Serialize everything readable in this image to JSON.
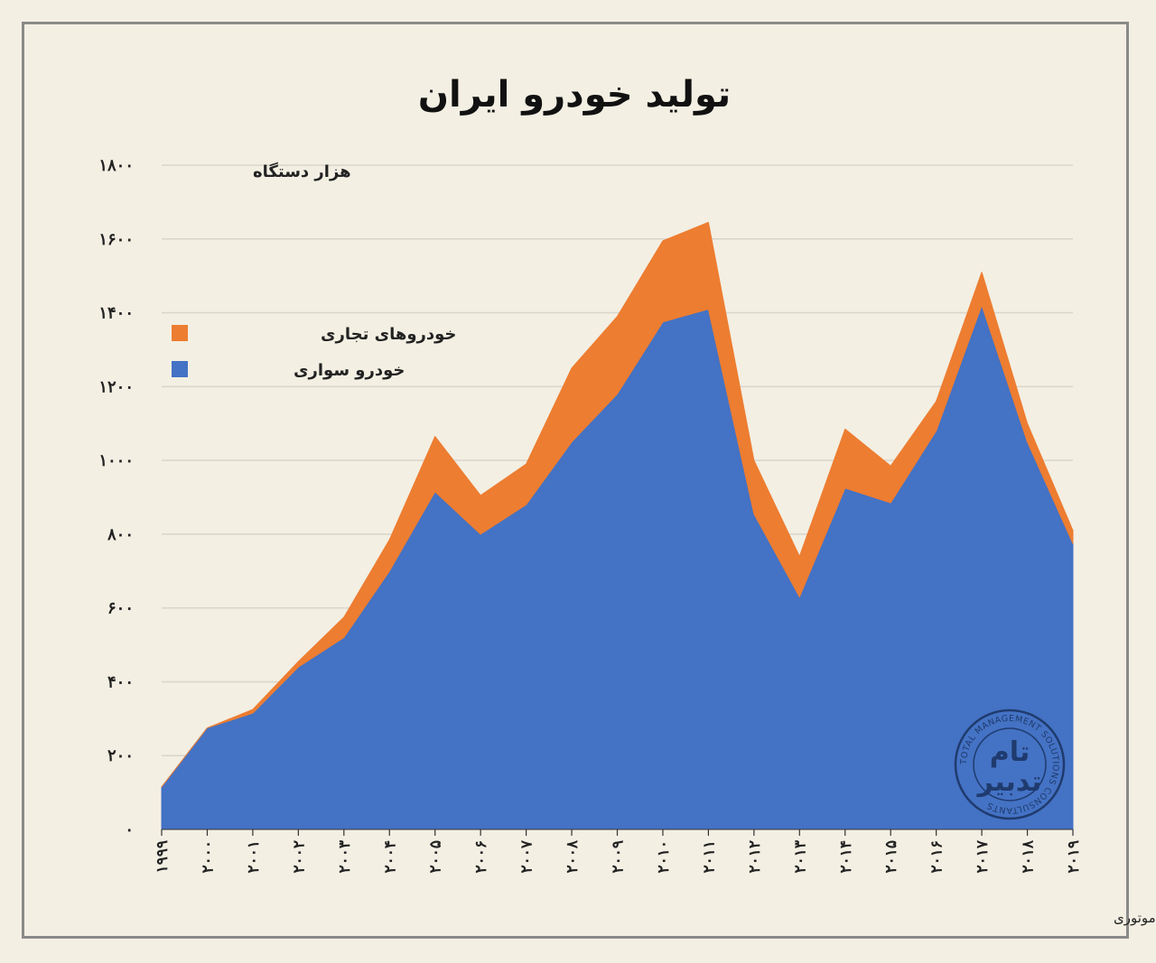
{
  "chart_data": {
    "type": "area",
    "stacked": true,
    "title": "تولید خودرو ایران",
    "ylabel": "هزار دستگاه",
    "ylim": [
      0,
      1800
    ],
    "y_ticks": [
      0,
      200,
      400,
      600,
      800,
      1000,
      1200,
      1400,
      1600,
      1800
    ],
    "y_tick_labels": [
      "۰",
      "۲۰۰",
      "۴۰۰",
      "۶۰۰",
      "۸۰۰",
      "۱۰۰۰",
      "۱۲۰۰",
      "۱۴۰۰",
      "۱۶۰۰",
      "۱۸۰۰"
    ],
    "x": [
      1999,
      2000,
      2001,
      2002,
      2003,
      2004,
      2005,
      2006,
      2007,
      2008,
      2009,
      2010,
      2011,
      2012,
      2013,
      2014,
      2015,
      2016,
      2017,
      2018,
      2019
    ],
    "x_tick_labels": [
      "۱۹۹۹",
      "۲۰۰۰",
      "۲۰۰۱",
      "۲۰۰۲",
      "۲۰۰۳",
      "۲۰۰۴",
      "۲۰۰۵",
      "۲۰۰۶",
      "۲۰۰۷",
      "۲۰۰۸",
      "۲۰۰۹",
      "۲۰۱۰",
      "۲۰۱۱",
      "۲۰۱۲",
      "۲۰۱۳",
      "۲۰۱۴",
      "۲۰۱۵",
      "۲۰۱۶",
      "۲۰۱۷",
      "۲۰۱۸",
      "۲۰۱۹"
    ],
    "series": [
      {
        "name": "خودرو سواری",
        "color": "#4472c4",
        "values": [
          115,
          275,
          315,
          440,
          520,
          700,
          915,
          800,
          880,
          1050,
          1180,
          1375,
          1410,
          855,
          630,
          925,
          885,
          1080,
          1420,
          1050,
          775
        ]
      },
      {
        "name": "خودروهای تجاری",
        "color": "#ed7d31",
        "values": [
          0,
          0,
          10,
          15,
          55,
          85,
          150,
          105,
          110,
          200,
          210,
          220,
          235,
          145,
          110,
          160,
          100,
          80,
          90,
          50,
          35
        ]
      }
    ],
    "legend_position": "top-left",
    "grid": true
  },
  "source_note": "تحلیل و استنتاج: احسان سلطانی بر اساس داده های سازمان بین المللی تولیدکنندگان وسایل نقلیه موتوری",
  "logo": {
    "word_top": "تام",
    "word_bottom": "تدبیر",
    "ring_text": "TOTAL MANAGEMENT SOLUTIONS CONSULTANTS"
  },
  "colors": {
    "background": "#f3efe3",
    "grid": "#d9d5cb",
    "logo": "#1f3b6e"
  }
}
